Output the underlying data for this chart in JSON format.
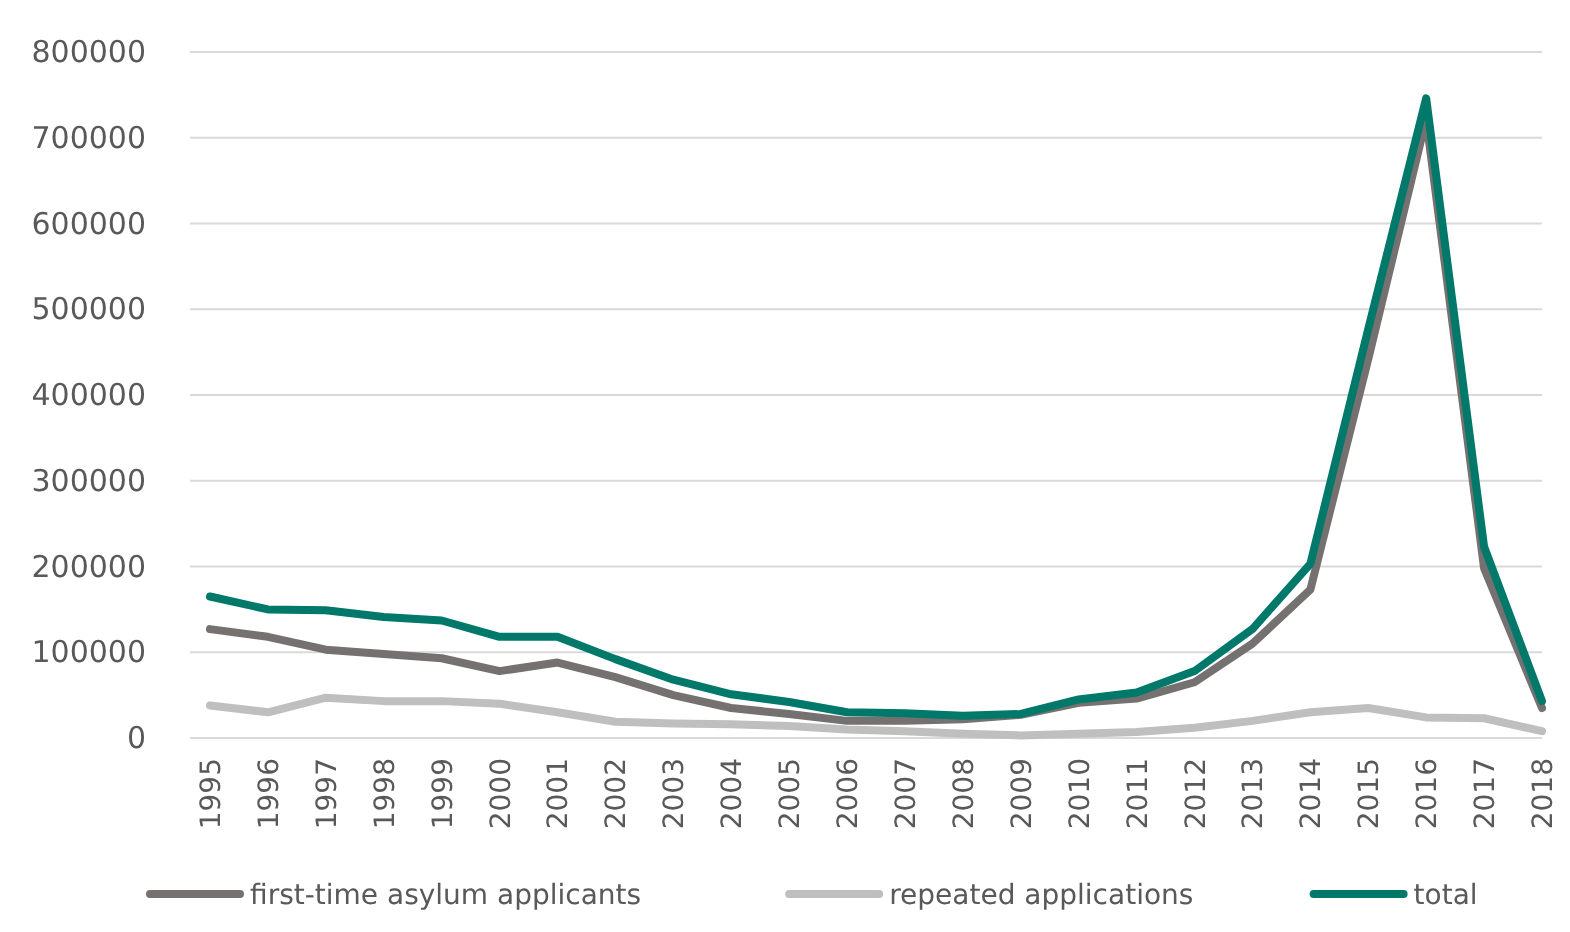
{
  "chart_data": {
    "type": "line",
    "categories": [
      "1995",
      "1996",
      "1997",
      "1998",
      "1999",
      "2000",
      "2001",
      "2002",
      "2003",
      "2004",
      "2005",
      "2006",
      "2007",
      "2008",
      "2009",
      "2010",
      "2011",
      "2012",
      "2013",
      "2014",
      "2015",
      "2016",
      "2017",
      "2018"
    ],
    "series": [
      {
        "name": "first-time asylum applicants",
        "color": "#767171",
        "values": [
          127000,
          118000,
          103000,
          98000,
          93000,
          78000,
          88000,
          71000,
          50000,
          35000,
          28000,
          20000,
          20000,
          22000,
          27000,
          41000,
          46000,
          65000,
          110000,
          173000,
          442000,
          722000,
          198000,
          35000
        ]
      },
      {
        "name": "repeated applications",
        "color": "#bfbfbf",
        "values": [
          38000,
          30000,
          47000,
          43000,
          43000,
          40000,
          30000,
          19000,
          17000,
          16000,
          14000,
          10000,
          8000,
          5000,
          3000,
          5000,
          7000,
          12000,
          20000,
          30000,
          35000,
          24000,
          23000,
          8000
        ]
      },
      {
        "name": "total",
        "color": "#00786a",
        "values": [
          165000,
          150000,
          149000,
          141000,
          137000,
          118000,
          118000,
          92000,
          68000,
          51000,
          42000,
          30000,
          29000,
          26000,
          28000,
          45000,
          53000,
          78000,
          127000,
          203000,
          477000,
          746000,
          223000,
          43000
        ]
      }
    ],
    "ylim": [
      0,
      800000
    ],
    "yticks": [
      0,
      100000,
      200000,
      300000,
      400000,
      500000,
      600000,
      700000,
      800000
    ],
    "grid": "y",
    "legend": "bottom",
    "marker": "none",
    "line_style": "solid"
  }
}
